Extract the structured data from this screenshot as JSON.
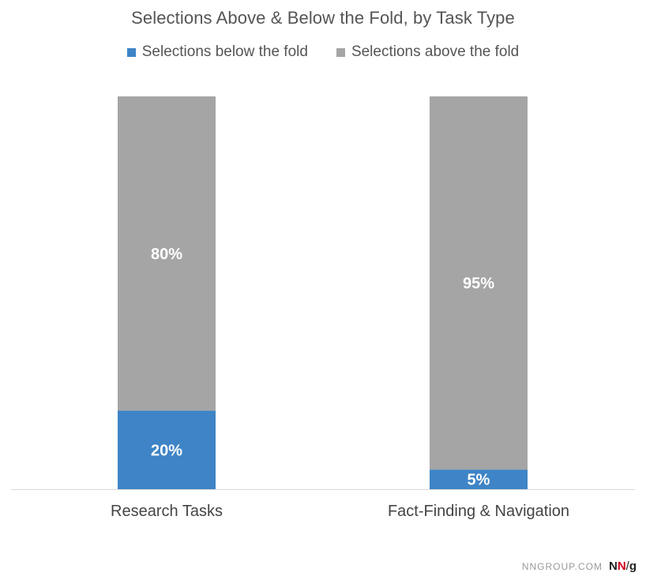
{
  "chart_data": {
    "type": "bar",
    "stacked": true,
    "title": "Selections Above & Below the Fold, by Task Type",
    "xlabel": "",
    "ylabel": "",
    "ylim": [
      0,
      100
    ],
    "grid": false,
    "legend_position": "top",
    "categories": [
      "Research Tasks",
      "Fact-Finding & Navigation"
    ],
    "series": [
      {
        "name": "Selections below the fold",
        "color": "#3e84c6",
        "values": [
          20,
          5
        ],
        "labels": [
          "20%",
          "5%"
        ]
      },
      {
        "name": "Selections above the fold",
        "color": "#a5a5a5",
        "values": [
          80,
          95
        ],
        "labels": [
          "80%",
          "95%"
        ]
      }
    ]
  },
  "footer": {
    "site": "NNGROUP.COM",
    "logo_n1": "N",
    "logo_n2": "N",
    "logo_slash": "/",
    "logo_g": "g"
  }
}
